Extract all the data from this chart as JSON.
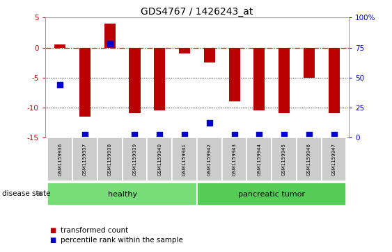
{
  "title": "GDS4767 / 1426243_at",
  "samples": [
    "GSM1159936",
    "GSM1159937",
    "GSM1159938",
    "GSM1159939",
    "GSM1159940",
    "GSM1159941",
    "GSM1159942",
    "GSM1159943",
    "GSM1159944",
    "GSM1159945",
    "GSM1159946",
    "GSM1159947"
  ],
  "transformed_count": [
    0.5,
    -11.5,
    4.0,
    -11.0,
    -10.5,
    -1.0,
    -2.5,
    -9.0,
    -10.5,
    -11.0,
    -5.0,
    -11.0
  ],
  "percentile_rank": [
    44,
    2,
    78,
    2,
    2,
    2,
    12,
    2,
    2,
    2,
    2,
    2
  ],
  "disease_state": [
    "healthy",
    "healthy",
    "healthy",
    "healthy",
    "healthy",
    "healthy",
    "pancreatic tumor",
    "pancreatic tumor",
    "pancreatic tumor",
    "pancreatic tumor",
    "pancreatic tumor",
    "pancreatic tumor"
  ],
  "ylim_left": [
    -15,
    5
  ],
  "ylim_right": [
    0,
    100
  ],
  "bar_color": "#bb0000",
  "dot_color": "#0000cc",
  "healthy_color": "#77dd77",
  "tumor_color": "#55cc55",
  "grid_color": "#000000",
  "zero_line_color": "#cc0000",
  "background_color": "#ffffff",
  "label_color_left": "#cc0000",
  "label_color_right": "#0000cc",
  "bar_width": 0.45,
  "dot_size": 35,
  "legend_items": [
    "transformed count",
    "percentile rank within the sample"
  ],
  "disease_state_label": "disease state"
}
